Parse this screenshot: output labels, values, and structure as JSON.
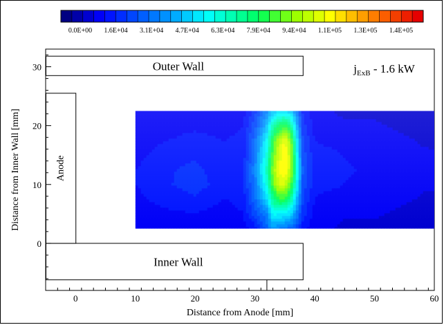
{
  "chart_data": {
    "type": "heatmap",
    "title": "",
    "annotation": {
      "main": "j",
      "subscript": "ExB",
      "suffix": " - 1.6 kW"
    },
    "xlabel": "Distance from Anode [mm]",
    "ylabel": "Distance from Inner Wall [mm]",
    "xlim": [
      -5,
      60
    ],
    "ylim": [
      -8,
      33
    ],
    "x_ticks": [
      0,
      10,
      20,
      30,
      40,
      50,
      60
    ],
    "y_ticks": [
      0,
      10,
      20,
      30
    ],
    "x_tick_labels": [
      "0",
      "10",
      "20",
      "30",
      "40",
      "50",
      "60"
    ],
    "y_tick_labels": [
      "0",
      "10",
      "20",
      "30"
    ],
    "grid": false,
    "colorbar": {
      "position": "top",
      "min": 0,
      "max": 150000,
      "levels": 33,
      "tick_labels": [
        "0.0E+00",
        "1.6E+04",
        "3.1E+04",
        "4.7E+04",
        "6.3E+04",
        "7.9E+04",
        "9.4E+04",
        "1.1E+05",
        "1.3E+05",
        "1.4E+05"
      ]
    },
    "data_region": {
      "x": [
        10,
        60
      ],
      "y": [
        2.5,
        22.5
      ]
    },
    "field_samples": {
      "x": [
        10,
        15,
        20,
        25,
        28,
        30,
        32,
        33,
        34,
        35,
        36,
        37,
        38,
        40,
        42,
        45,
        50,
        55,
        60
      ],
      "y": [
        2.5,
        5,
        7.5,
        10,
        12.5,
        15,
        17.5,
        20,
        22.5
      ],
      "z": [
        [
          15000,
          15000,
          14000,
          14000,
          16000,
          20000,
          35000,
          45000,
          40000,
          38000,
          35000,
          30000,
          20000,
          15000,
          14000,
          13000,
          13000,
          12000,
          12000
        ],
        [
          16000,
          17000,
          18000,
          16000,
          18000,
          30000,
          40000,
          60000,
          60000,
          58000,
          55000,
          40000,
          25000,
          16000,
          15000,
          14000,
          14000,
          13000,
          13000
        ],
        [
          17000,
          20000,
          22000,
          18000,
          20000,
          35000,
          55000,
          75000,
          85000,
          85000,
          75000,
          50000,
          28000,
          18000,
          16000,
          16000,
          15000,
          14000,
          13000
        ],
        [
          18000,
          22000,
          25000,
          20000,
          22000,
          38000,
          65000,
          90000,
          105000,
          105000,
          90000,
          60000,
          30000,
          20000,
          20000,
          18000,
          16000,
          14000,
          14000
        ],
        [
          18000,
          22000,
          24000,
          20000,
          22000,
          40000,
          70000,
          95000,
          110000,
          115000,
          100000,
          65000,
          32000,
          21000,
          22000,
          19000,
          17000,
          15000,
          14000
        ],
        [
          17000,
          20000,
          22000,
          19000,
          20000,
          38000,
          65000,
          90000,
          105000,
          115000,
          100000,
          62000,
          30000,
          20000,
          20000,
          18000,
          16000,
          14000,
          14000
        ],
        [
          16000,
          18000,
          20000,
          18000,
          20000,
          35000,
          60000,
          85000,
          100000,
          110000,
          95000,
          58000,
          28000,
          18000,
          17000,
          16000,
          15000,
          14000,
          13000
        ],
        [
          15000,
          16000,
          17000,
          16000,
          18000,
          30000,
          50000,
          70000,
          80000,
          85000,
          75000,
          48000,
          25000,
          16000,
          15000,
          14000,
          14000,
          13000,
          13000
        ],
        [
          14000,
          15000,
          15000,
          14000,
          16000,
          25000,
          40000,
          50000,
          55000,
          55000,
          50000,
          38000,
          22000,
          15000,
          14000,
          13000,
          13000,
          12000,
          12000
        ]
      ],
      "note": "approximate values estimated from the rendered contour colors"
    },
    "structures": [
      {
        "label": "Outer Wall",
        "x": [
          -5,
          38
        ],
        "y": [
          28.5,
          31.8
        ]
      },
      {
        "label": "Inner Wall",
        "x": [
          -5,
          38
        ],
        "y": [
          -6.2,
          0
        ]
      },
      {
        "label": "Anode",
        "x": [
          -5,
          0
        ],
        "y": [
          0,
          25.5
        ]
      }
    ]
  }
}
